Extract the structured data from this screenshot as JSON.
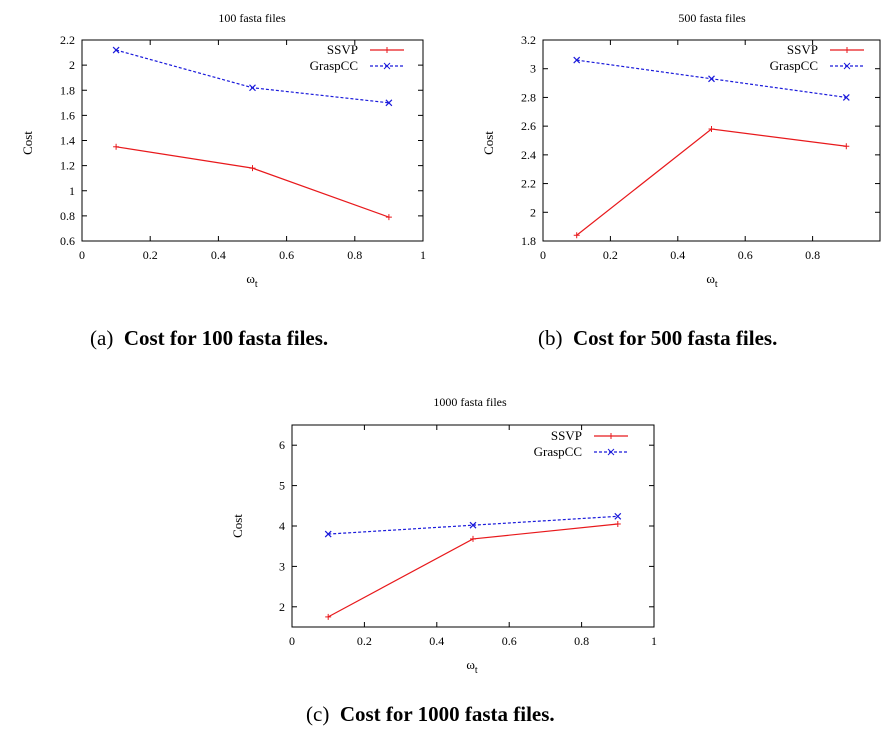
{
  "chart_data": [
    {
      "type": "line",
      "title": "100 fasta files",
      "xlabel": "ωt",
      "ylabel": "Cost",
      "xlim": [
        0,
        1
      ],
      "ylim": [
        0.6,
        2.2
      ],
      "xticks": [
        "0",
        "0.2",
        "0.4",
        "0.6",
        "0.8",
        "1"
      ],
      "yticks": [
        "0.6",
        "0.8",
        "1",
        "1.2",
        "1.4",
        "1.6",
        "1.8",
        "2",
        "2.2"
      ],
      "legend_position": "top-right",
      "x": [
        0.1,
        0.5,
        0.9
      ],
      "series": [
        {
          "name": "SSVP",
          "values": [
            1.35,
            1.18,
            0.79
          ],
          "color": "#e8191c",
          "style": "solid",
          "marker": "+"
        },
        {
          "name": "GraspCC",
          "values": [
            2.12,
            1.82,
            1.7
          ],
          "color": "#1a1adb",
          "style": "dashed",
          "marker": "x"
        }
      ],
      "caption_tag": "(a)",
      "caption_text": "Cost for 100 fasta files."
    },
    {
      "type": "line",
      "title": "500 fasta files",
      "xlabel": "ωt",
      "ylabel": "Cost",
      "xlim": [
        0,
        1
      ],
      "ylim": [
        1.8,
        3.2
      ],
      "xticks": [
        "0",
        "0.2",
        "0.4",
        "0.6",
        "0.8"
      ],
      "yticks": [
        "1.8",
        "2",
        "2.2",
        "2.4",
        "2.6",
        "2.8",
        "3",
        "3.2"
      ],
      "legend_position": "top-right",
      "x": [
        0.1,
        0.5,
        0.9
      ],
      "series": [
        {
          "name": "SSVP",
          "values": [
            1.84,
            2.58,
            2.46
          ],
          "color": "#e8191c",
          "style": "solid",
          "marker": "+"
        },
        {
          "name": "GraspCC",
          "values": [
            3.06,
            2.93,
            2.8
          ],
          "color": "#1a1adb",
          "style": "dashed",
          "marker": "x"
        }
      ],
      "caption_tag": "(b)",
      "caption_text": "Cost for 500 fasta files."
    },
    {
      "type": "line",
      "title": "1000 fasta files",
      "xlabel": "ωt",
      "ylabel": "Cost",
      "xlim": [
        0,
        1
      ],
      "ylim": [
        1.5,
        6.5
      ],
      "xticks": [
        "0",
        "0.2",
        "0.4",
        "0.6",
        "0.8",
        "1"
      ],
      "yticks": [
        "2",
        "3",
        "4",
        "5",
        "6"
      ],
      "legend_position": "top-right",
      "x": [
        0.1,
        0.5,
        0.9
      ],
      "series": [
        {
          "name": "SSVP",
          "values": [
            1.75,
            3.68,
            4.05
          ],
          "color": "#e8191c",
          "style": "solid",
          "marker": "+"
        },
        {
          "name": "GraspCC",
          "values": [
            3.8,
            4.02,
            4.24
          ],
          "color": "#1a1adb",
          "style": "dashed",
          "marker": "x"
        }
      ],
      "caption_tag": "(c)",
      "caption_text": "Cost for 1000 fasta files."
    }
  ]
}
